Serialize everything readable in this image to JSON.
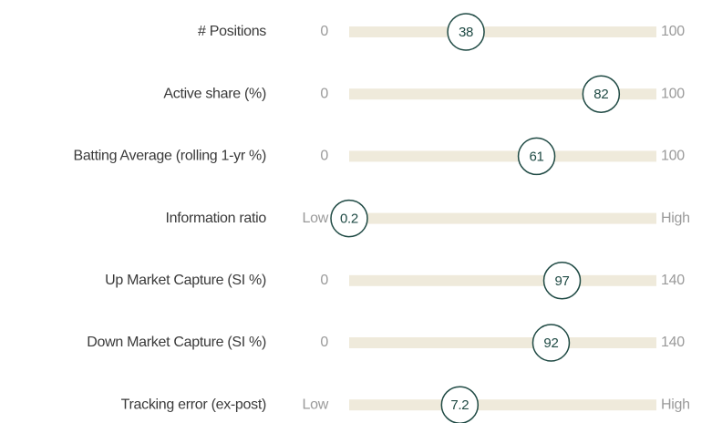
{
  "chart_data": {
    "type": "slider",
    "rows": [
      {
        "label": "# Positions",
        "value": 38,
        "xlim": [
          0,
          100
        ],
        "xticks": [
          0,
          100
        ]
      },
      {
        "label": "Active share (%)",
        "value": 82,
        "xlim": [
          0,
          100
        ],
        "xticks": [
          0,
          100
        ]
      },
      {
        "label": "Batting Average (rolling 1-yr %)",
        "value": 61,
        "xlim": [
          0,
          100
        ],
        "xticks": [
          0,
          100
        ]
      },
      {
        "label": "Information ratio",
        "value": 0.2,
        "xlim": [
          0.2,
          2
        ],
        "xticks": [
          {
            "value": 0.2,
            "label": "Low"
          },
          {
            "value": 2,
            "label": "High"
          }
        ]
      },
      {
        "label": "Up Market Capture (SI %)",
        "value": 97,
        "xlim": [
          0,
          140
        ],
        "xticks": [
          0,
          140
        ]
      },
      {
        "label": "Down Market Capture (SI %)",
        "value": 92,
        "xlim": [
          0,
          140
        ],
        "xticks": [
          0,
          140
        ]
      },
      {
        "label": "Tracking error (ex-post)",
        "value": 7.2,
        "xlim": [
          0,
          20
        ],
        "xticks": [
          {
            "value": 0,
            "label": "Low"
          },
          {
            "value": 20,
            "label": "High"
          }
        ]
      }
    ]
  }
}
